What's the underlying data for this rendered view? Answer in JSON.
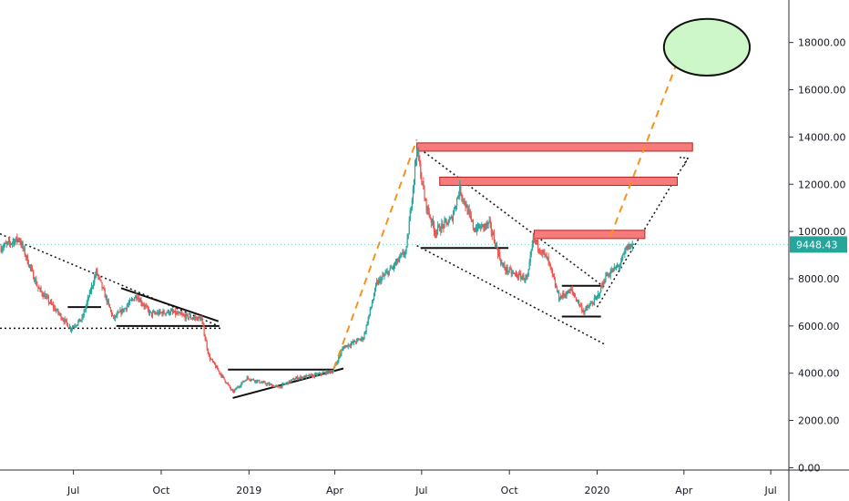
{
  "chart_data": {
    "type": "candlestick",
    "y_axis": {
      "position": "right",
      "ticks": [
        "18000.00",
        "16000.00",
        "14000.00",
        "12000.00",
        "10000.00",
        "8000.00",
        "6000.00",
        "4000.00",
        "2000.00",
        "0.00"
      ],
      "tick_values": [
        18000,
        16000,
        14000,
        12000,
        10000,
        8000,
        6000,
        4000,
        2000,
        0
      ],
      "ylim": [
        -100,
        19800
      ]
    },
    "x_axis": {
      "ticks": [
        "Jul",
        "Oct",
        "2019",
        "Apr",
        "Jul",
        "Oct",
        "2020",
        "Apr",
        "Jul"
      ],
      "tick_dates": [
        "2018-07",
        "2018-10",
        "2019-01",
        "2019-04",
        "2019-07",
        "2019-10",
        "2020-01",
        "2020-04",
        "2020-07"
      ],
      "xlim": [
        "2018-04-15",
        "2020-07-20"
      ]
    },
    "last_price": {
      "label": "9448.43",
      "value": 9448.43,
      "color": "#26a69a"
    },
    "colors": {
      "up": "#26a69a",
      "down": "#ef5350",
      "grid": "none",
      "projection": "#f7931a"
    },
    "grid": false,
    "price_path": [
      [
        "2018-04-15",
        9300
      ],
      [
        "2018-05-05",
        9700
      ],
      [
        "2018-05-25",
        7600
      ],
      [
        "2018-06-10",
        6800
      ],
      [
        "2018-06-28",
        5900
      ],
      [
        "2018-07-10",
        6300
      ],
      [
        "2018-07-25",
        8300
      ],
      [
        "2018-08-12",
        6300
      ],
      [
        "2018-08-25",
        6800
      ],
      [
        "2018-09-05",
        7300
      ],
      [
        "2018-09-20",
        6500
      ],
      [
        "2018-10-10",
        6600
      ],
      [
        "2018-10-25",
        6400
      ],
      [
        "2018-11-12",
        6300
      ],
      [
        "2018-11-20",
        4700
      ],
      [
        "2018-12-05",
        3800
      ],
      [
        "2018-12-15",
        3200
      ],
      [
        "2018-12-30",
        3800
      ],
      [
        "2019-01-15",
        3600
      ],
      [
        "2019-02-01",
        3400
      ],
      [
        "2019-02-20",
        3800
      ],
      [
        "2019-03-10",
        3900
      ],
      [
        "2019-03-30",
        4100
      ],
      [
        "2019-04-10",
        5100
      ],
      [
        "2019-05-01",
        5500
      ],
      [
        "2019-05-15",
        7800
      ],
      [
        "2019-06-01",
        8500
      ],
      [
        "2019-06-15",
        9200
      ],
      [
        "2019-06-26",
        13500
      ],
      [
        "2019-07-05",
        11200
      ],
      [
        "2019-07-15",
        10000
      ],
      [
        "2019-08-01",
        10500
      ],
      [
        "2019-08-10",
        11800
      ],
      [
        "2019-08-25",
        10100
      ],
      [
        "2019-09-10",
        10300
      ],
      [
        "2019-09-24",
        8500
      ],
      [
        "2019-10-05",
        8200
      ],
      [
        "2019-10-20",
        8000
      ],
      [
        "2019-10-26",
        9700
      ],
      [
        "2019-11-10",
        8800
      ],
      [
        "2019-11-22",
        7200
      ],
      [
        "2019-12-05",
        7500
      ],
      [
        "2019-12-18",
        6600
      ],
      [
        "2020-01-01",
        7200
      ],
      [
        "2020-01-10",
        8100
      ],
      [
        "2020-01-25",
        8600
      ],
      [
        "2020-02-01",
        9300
      ],
      [
        "2020-02-08",
        9448
      ]
    ],
    "annotations": [
      {
        "type": "dotted-line",
        "from": [
          "2018-04-15",
          9900
        ],
        "to": [
          "2018-11-30",
          6000
        ]
      },
      {
        "type": "dotted-line",
        "from": [
          "2018-04-15",
          5900
        ],
        "to": [
          "2018-12-05",
          5900
        ]
      },
      {
        "type": "line",
        "from": [
          "2018-06-25",
          6800
        ],
        "to": [
          "2018-07-30",
          6800
        ]
      },
      {
        "type": "line",
        "from": [
          "2018-08-15",
          6000
        ],
        "to": [
          "2018-12-01",
          6000
        ]
      },
      {
        "type": "line",
        "from": [
          "2018-08-20",
          7600
        ],
        "to": [
          "2018-11-30",
          6200
        ]
      },
      {
        "type": "line",
        "from": [
          "2018-12-10",
          4150
        ],
        "to": [
          "2019-03-31",
          4150
        ]
      },
      {
        "type": "line",
        "from": [
          "2018-12-15",
          2950
        ],
        "to": [
          "2019-04-10",
          4200
        ]
      },
      {
        "type": "dashed-line",
        "from": [
          "2019-03-31",
          4200
        ],
        "to": [
          "2019-06-26",
          13900
        ]
      },
      {
        "type": "dotted-line",
        "from": [
          "2019-06-26",
          13600
        ],
        "to": [
          "2020-01-10",
          7600
        ]
      },
      {
        "type": "dotted-line",
        "from": [
          "2019-06-26",
          9400
        ],
        "to": [
          "2020-01-10",
          5200
        ]
      },
      {
        "type": "line",
        "from": [
          "2019-06-30",
          9300
        ],
        "to": [
          "2019-09-30",
          9300
        ]
      },
      {
        "type": "line",
        "from": [
          "2019-11-25",
          7700
        ],
        "to": [
          "2020-01-05",
          7700
        ]
      },
      {
        "type": "line",
        "from": [
          "2019-11-25",
          6400
        ],
        "to": [
          "2020-01-05",
          6400
        ]
      },
      {
        "type": "dashed-line",
        "from": [
          "2020-01-15",
          9800
        ],
        "to": [
          "2020-03-30",
          17700
        ]
      },
      {
        "type": "dotted-line",
        "from": [
          "2020-01-01",
          6800
        ],
        "to": [
          "2020-04-05",
          13100
        ]
      },
      {
        "type": "zone",
        "from": "2019-06-26",
        "to": "2020-04-10",
        "low": 13400,
        "high": 13750
      },
      {
        "type": "zone",
        "from": "2019-07-20",
        "to": "2020-03-25",
        "low": 11950,
        "high": 12300
      },
      {
        "type": "zone",
        "from": "2019-10-27",
        "to": "2020-02-20",
        "low": 9700,
        "high": 10050
      },
      {
        "type": "target-ellipse",
        "center": [
          "2020-04-25",
          17800
        ],
        "rx_days": 45,
        "ry": 1200
      }
    ]
  }
}
